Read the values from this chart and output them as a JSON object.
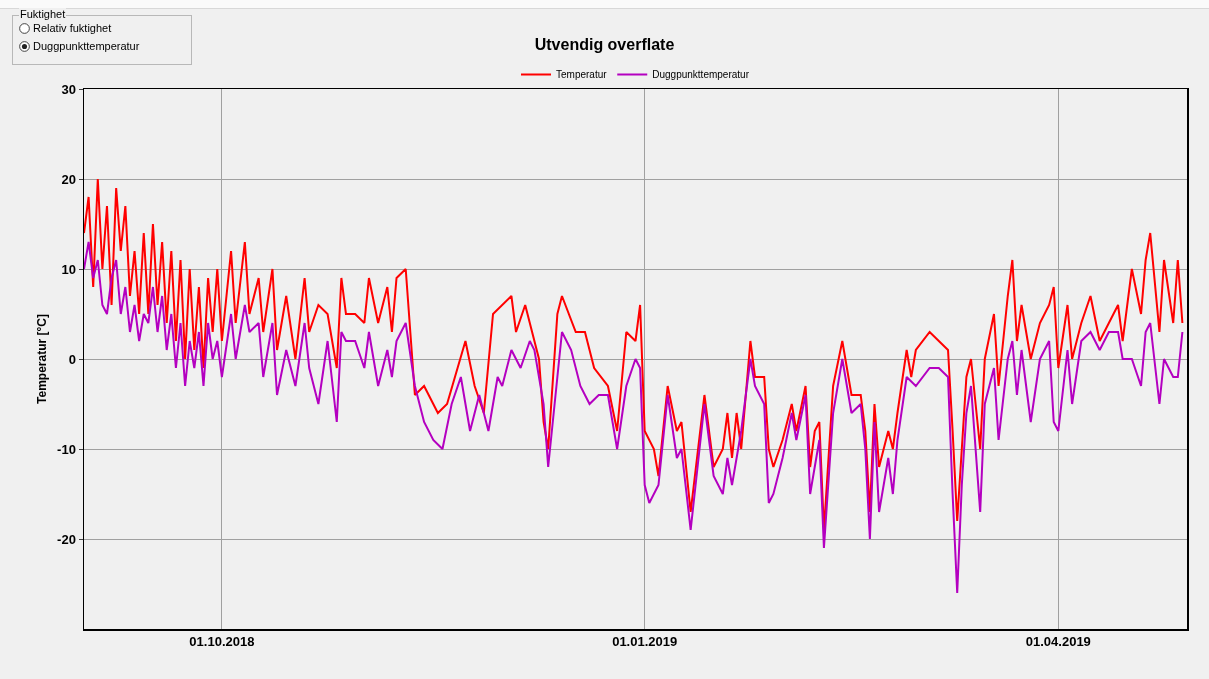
{
  "chart_data": {
    "type": "line",
    "title": "Utvendig overflate",
    "ylabel": "Temperatur [°C]",
    "annotations": [
      "Fuktighet",
      "Relativ fuktighet",
      "Duggpunkttemperatur"
    ],
    "xlim": [
      "2018-09-01",
      "2019-04-29"
    ],
    "xticks": [
      {
        "value": "2018-10-01",
        "label": "01.10.2018"
      },
      {
        "value": "2019-01-01",
        "label": "01.01.2019"
      },
      {
        "value": "2019-04-01",
        "label": "01.04.2019"
      }
    ],
    "ylim": [
      -30,
      30
    ],
    "yticks": [
      -20,
      -10,
      0,
      10,
      20,
      30
    ],
    "grid": true,
    "legend": "top",
    "marker": "none",
    "line_style": "solid",
    "series": [
      {
        "name": "Temperatur",
        "color": "#ff0000",
        "x": [
          "2018-09-01",
          "2018-09-02",
          "2018-09-03",
          "2018-09-04",
          "2018-09-05",
          "2018-09-06",
          "2018-09-07",
          "2018-09-08",
          "2018-09-09",
          "2018-09-10",
          "2018-09-11",
          "2018-09-12",
          "2018-09-13",
          "2018-09-14",
          "2018-09-15",
          "2018-09-16",
          "2018-09-17",
          "2018-09-18",
          "2018-09-19",
          "2018-09-20",
          "2018-09-21",
          "2018-09-22",
          "2018-09-23",
          "2018-09-24",
          "2018-09-25",
          "2018-09-26",
          "2018-09-27",
          "2018-09-28",
          "2018-09-29",
          "2018-09-30",
          "2018-10-01",
          "2018-10-03",
          "2018-10-04",
          "2018-10-06",
          "2018-10-07",
          "2018-10-09",
          "2018-10-10",
          "2018-10-12",
          "2018-10-13",
          "2018-10-15",
          "2018-10-17",
          "2018-10-19",
          "2018-10-20",
          "2018-10-22",
          "2018-10-24",
          "2018-10-26",
          "2018-10-27",
          "2018-10-28",
          "2018-10-30",
          "2018-11-01",
          "2018-11-02",
          "2018-11-04",
          "2018-11-06",
          "2018-11-07",
          "2018-11-08",
          "2018-11-10",
          "2018-11-12",
          "2018-11-14",
          "2018-11-17",
          "2018-11-19",
          "2018-11-23",
          "2018-11-25",
          "2018-11-27",
          "2018-11-29",
          "2018-12-03",
          "2018-12-04",
          "2018-12-06",
          "2018-12-09",
          "2018-12-10",
          "2018-12-11",
          "2018-12-13",
          "2018-12-14",
          "2018-12-17",
          "2018-12-19",
          "2018-12-21",
          "2018-12-24",
          "2018-12-26",
          "2018-12-28",
          "2018-12-30",
          "2018-12-31",
          "2019-01-01",
          "2019-01-03",
          "2019-01-04",
          "2019-01-06",
          "2019-01-08",
          "2019-01-09",
          "2019-01-11",
          "2019-01-14",
          "2019-01-16",
          "2019-01-18",
          "2019-01-19",
          "2019-01-20",
          "2019-01-21",
          "2019-01-22",
          "2019-01-24",
          "2019-01-25",
          "2019-01-27",
          "2019-01-28",
          "2019-01-29",
          "2019-01-31",
          "2019-02-02",
          "2019-02-03",
          "2019-02-05",
          "2019-02-06",
          "2019-02-07",
          "2019-02-08",
          "2019-02-09",
          "2019-02-11",
          "2019-02-13",
          "2019-02-15",
          "2019-02-17",
          "2019-02-18",
          "2019-02-19",
          "2019-02-20",
          "2019-02-21",
          "2019-02-23",
          "2019-02-24",
          "2019-02-25",
          "2019-02-27",
          "2019-02-28",
          "2019-03-01",
          "2019-03-04",
          "2019-03-06",
          "2019-03-08",
          "2019-03-09",
          "2019-03-10",
          "2019-03-11",
          "2019-03-12",
          "2019-03-13",
          "2019-03-15",
          "2019-03-16",
          "2019-03-18",
          "2019-03-19",
          "2019-03-21",
          "2019-03-22",
          "2019-03-23",
          "2019-03-24",
          "2019-03-26",
          "2019-03-28",
          "2019-03-30",
          "2019-03-31",
          "2019-04-01",
          "2019-04-03",
          "2019-04-04",
          "2019-04-06",
          "2019-04-08",
          "2019-04-10",
          "2019-04-12",
          "2019-04-14",
          "2019-04-15",
          "2019-04-17",
          "2019-04-19",
          "2019-04-20",
          "2019-04-21",
          "2019-04-23",
          "2019-04-24",
          "2019-04-26",
          "2019-04-27",
          "2019-04-28"
        ],
        "values": [
          14,
          18,
          8,
          20,
          10,
          17,
          6,
          19,
          12,
          17,
          7,
          12,
          5,
          14,
          5,
          15,
          6,
          13,
          4,
          12,
          2,
          11,
          0,
          10,
          1,
          8,
          -1,
          9,
          3,
          10,
          2,
          12,
          4,
          13,
          5,
          9,
          3,
          10,
          1,
          7,
          0,
          9,
          3,
          6,
          5,
          -1,
          9,
          5,
          5,
          4,
          9,
          4,
          8,
          3,
          9,
          10,
          -4,
          -3,
          -6,
          -5,
          2,
          -3,
          -6,
          5,
          7,
          3,
          6,
          0,
          -7,
          -10,
          5,
          7,
          3,
          3,
          -1,
          -3,
          -8,
          3,
          2,
          6,
          -8,
          -10,
          -13,
          -3,
          -8,
          -7,
          -17,
          -4,
          -12,
          -10,
          -6,
          -11,
          -6,
          -10,
          2,
          -2,
          -2,
          -10,
          -12,
          -9,
          -5,
          -8,
          -3,
          -12,
          -8,
          -7,
          -19,
          -3,
          2,
          -4,
          -4,
          -8,
          -17,
          -5,
          -12,
          -8,
          -10,
          -6,
          1,
          -2,
          1,
          3,
          2,
          1,
          -8,
          -18,
          -10,
          -2,
          0,
          -10,
          0,
          5,
          -3,
          7,
          11,
          2,
          6,
          0,
          4,
          6,
          8,
          -1,
          6,
          0,
          4,
          7,
          2,
          4,
          6,
          2,
          10,
          5,
          11,
          14,
          3,
          11,
          4,
          11,
          4
        ]
      },
      {
        "name": "Duggpunkttemperatur",
        "color": "#b400c0",
        "x": [
          "2018-09-01",
          "2018-09-02",
          "2018-09-03",
          "2018-09-04",
          "2018-09-05",
          "2018-09-06",
          "2018-09-07",
          "2018-09-08",
          "2018-09-09",
          "2018-09-10",
          "2018-09-11",
          "2018-09-12",
          "2018-09-13",
          "2018-09-14",
          "2018-09-15",
          "2018-09-16",
          "2018-09-17",
          "2018-09-18",
          "2018-09-19",
          "2018-09-20",
          "2018-09-21",
          "2018-09-22",
          "2018-09-23",
          "2018-09-24",
          "2018-09-25",
          "2018-09-26",
          "2018-09-27",
          "2018-09-28",
          "2018-09-29",
          "2018-09-30",
          "2018-10-01",
          "2018-10-03",
          "2018-10-04",
          "2018-10-06",
          "2018-10-07",
          "2018-10-09",
          "2018-10-10",
          "2018-10-12",
          "2018-10-13",
          "2018-10-15",
          "2018-10-17",
          "2018-10-19",
          "2018-10-20",
          "2018-10-22",
          "2018-10-24",
          "2018-10-26",
          "2018-10-27",
          "2018-10-28",
          "2018-10-30",
          "2018-11-01",
          "2018-11-02",
          "2018-11-04",
          "2018-11-06",
          "2018-11-07",
          "2018-11-08",
          "2018-11-10",
          "2018-11-12",
          "2018-11-14",
          "2018-11-16",
          "2018-11-18",
          "2018-11-20",
          "2018-11-22",
          "2018-11-24",
          "2018-11-26",
          "2018-11-28",
          "2018-11-30",
          "2018-12-01",
          "2018-12-03",
          "2018-12-05",
          "2018-12-07",
          "2018-12-08",
          "2018-12-10",
          "2018-12-11",
          "2018-12-13",
          "2018-12-14",
          "2018-12-16",
          "2018-12-18",
          "2018-12-20",
          "2018-12-22",
          "2018-12-24",
          "2018-12-26",
          "2018-12-28",
          "2018-12-30",
          "2018-12-31",
          "2019-01-01",
          "2019-01-02",
          "2019-01-04",
          "2019-01-06",
          "2019-01-08",
          "2019-01-09",
          "2019-01-11",
          "2019-01-14",
          "2019-01-16",
          "2019-01-18",
          "2019-01-19",
          "2019-01-20",
          "2019-01-22",
          "2019-01-24",
          "2019-01-25",
          "2019-01-27",
          "2019-01-28",
          "2019-01-29",
          "2019-01-31",
          "2019-02-02",
          "2019-02-03",
          "2019-02-05",
          "2019-02-06",
          "2019-02-08",
          "2019-02-09",
          "2019-02-11",
          "2019-02-13",
          "2019-02-15",
          "2019-02-17",
          "2019-02-18",
          "2019-02-19",
          "2019-02-20",
          "2019-02-21",
          "2019-02-23",
          "2019-02-24",
          "2019-02-25",
          "2019-02-27",
          "2019-03-01",
          "2019-03-04",
          "2019-03-06",
          "2019-03-08",
          "2019-03-09",
          "2019-03-10",
          "2019-03-11",
          "2019-03-12",
          "2019-03-13",
          "2019-03-15",
          "2019-03-16",
          "2019-03-18",
          "2019-03-19",
          "2019-03-21",
          "2019-03-22",
          "2019-03-23",
          "2019-03-24",
          "2019-03-26",
          "2019-03-28",
          "2019-03-30",
          "2019-03-31",
          "2019-04-01",
          "2019-04-03",
          "2019-04-04",
          "2019-04-06",
          "2019-04-08",
          "2019-04-10",
          "2019-04-12",
          "2019-04-14",
          "2019-04-15",
          "2019-04-17",
          "2019-04-19",
          "2019-04-20",
          "2019-04-21",
          "2019-04-23",
          "2019-04-24",
          "2019-04-26",
          "2019-04-27",
          "2019-04-28"
        ],
        "values": [
          10,
          13,
          9,
          11,
          6,
          5,
          9,
          11,
          5,
          8,
          3,
          6,
          2,
          5,
          4,
          8,
          3,
          7,
          1,
          5,
          -1,
          4,
          -3,
          2,
          -1,
          3,
          -3,
          4,
          0,
          2,
          -2,
          5,
          0,
          6,
          3,
          4,
          -2,
          4,
          -4,
          1,
          -3,
          4,
          -1,
          -5,
          2,
          -7,
          3,
          2,
          2,
          -1,
          3,
          -3,
          1,
          -2,
          2,
          4,
          -3,
          -7,
          -9,
          -10,
          -5,
          -2,
          -8,
          -4,
          -8,
          -2,
          -3,
          1,
          -1,
          2,
          1,
          -5,
          -12,
          -2,
          3,
          1,
          -3,
          -5,
          -4,
          -4,
          -10,
          -3,
          0,
          -1,
          -14,
          -16,
          -14,
          -4,
          -11,
          -10,
          -19,
          -5,
          -13,
          -15,
          -11,
          -14,
          -8,
          0,
          -3,
          -5,
          -16,
          -15,
          -11,
          -6,
          -9,
          -4,
          -15,
          -9,
          -21,
          -6,
          0,
          -6,
          -5,
          -10,
          -20,
          -7,
          -17,
          -11,
          -15,
          -9,
          -2,
          -3,
          -1,
          -1,
          -2,
          -15,
          -26,
          -14,
          -6,
          -3,
          -17,
          -5,
          -1,
          -9,
          0,
          2,
          -4,
          1,
          -7,
          0,
          2,
          -7,
          -8,
          1,
          -5,
          2,
          3,
          1,
          3,
          3,
          0,
          0,
          -3,
          3,
          4,
          -5,
          0,
          -2,
          -2,
          3
        ]
      }
    ]
  }
}
